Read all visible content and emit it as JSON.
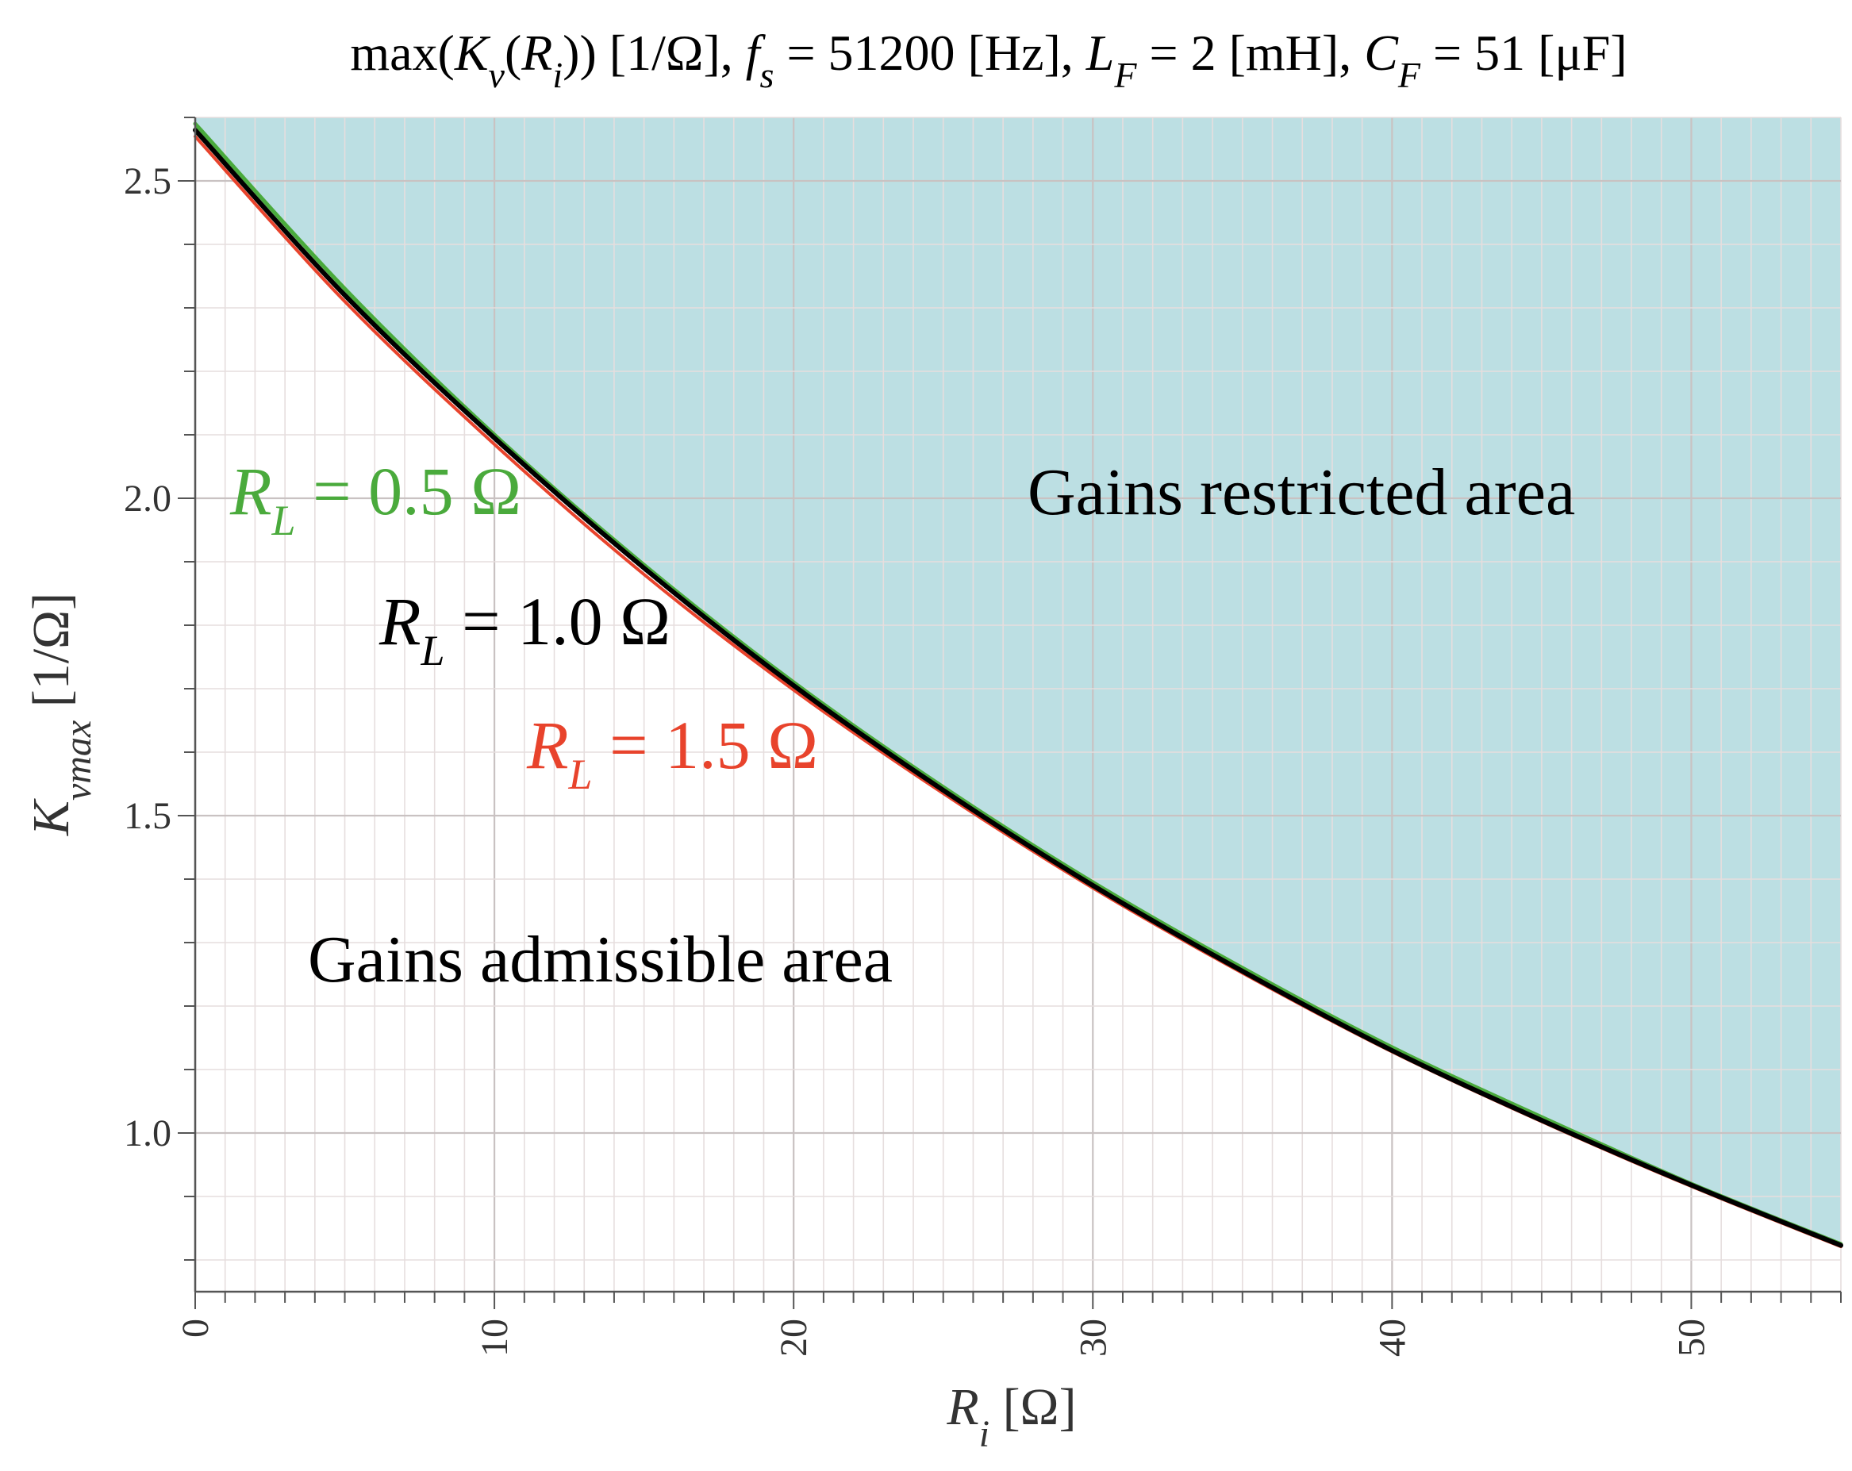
{
  "chart_data": {
    "type": "line",
    "title": {
      "prefix": "max(",
      "k": "K",
      "k_sub": "v",
      "r_open": "(",
      "r": "R",
      "r_sub": "i",
      "after_r": ")) [1/Ω], ",
      "fs": "f",
      "fs_sub": "s",
      "fs_val": " = 51200 [Hz], ",
      "lf": "L",
      "lf_sub": "F",
      "lf_val": " = 2 [mH], ",
      "cf": "C",
      "cf_sub": "F",
      "cf_val": " = 51 [μF]"
    },
    "xlabel": {
      "main": "R",
      "sub": "i",
      "unit": " [Ω]"
    },
    "ylabel": {
      "main": "K",
      "sub": "vmax",
      "unit": " [1/Ω]"
    },
    "xlim": [
      0,
      55
    ],
    "ylim": [
      0.75,
      2.6
    ],
    "x_ticks": [
      0,
      10,
      20,
      30,
      40,
      50
    ],
    "x_tick_labels": [
      "0",
      "10",
      "20",
      "30",
      "40",
      "50"
    ],
    "y_ticks": [
      1.0,
      1.5,
      2.0,
      2.5
    ],
    "y_tick_labels": [
      "1.0",
      "1.5",
      "2.0",
      "2.5"
    ],
    "x_minor_step": 1,
    "y_minor_step": 0.1,
    "grid": true,
    "regions": {
      "restricted": {
        "label": "Gains restricted area",
        "color": "#bcdfe3"
      },
      "admissible": {
        "label": "Gains admissible area"
      }
    },
    "series": [
      {
        "name_main": "R",
        "name_sub": "L",
        "name_val": " = 0.5 Ω",
        "color": "#4aaa3c",
        "x": [
          0,
          5,
          10,
          15,
          20,
          25,
          30,
          35,
          40,
          45,
          50,
          55
        ],
        "y": [
          2.59,
          2.33,
          2.1,
          1.895,
          1.71,
          1.545,
          1.395,
          1.26,
          1.135,
          1.025,
          0.92,
          0.825
        ]
      },
      {
        "name_main": "R",
        "name_sub": "L",
        "name_val": " = 1.0 Ω",
        "color": "#000000",
        "x": [
          0,
          5,
          10,
          15,
          20,
          25,
          30,
          35,
          40,
          45,
          50,
          55
        ],
        "y": [
          2.58,
          2.32,
          2.095,
          1.89,
          1.705,
          1.54,
          1.39,
          1.255,
          1.13,
          1.02,
          0.918,
          0.823
        ]
      },
      {
        "name_main": "R",
        "name_sub": "L",
        "name_val": " = 1.5 Ω",
        "color": "#e8432c",
        "x": [
          0,
          5,
          10,
          15,
          20,
          25,
          30,
          35,
          40,
          45,
          50,
          55
        ],
        "y": [
          2.57,
          2.31,
          2.085,
          1.88,
          1.698,
          1.535,
          1.386,
          1.252,
          1.128,
          1.018,
          0.916,
          0.821
        ]
      }
    ]
  }
}
